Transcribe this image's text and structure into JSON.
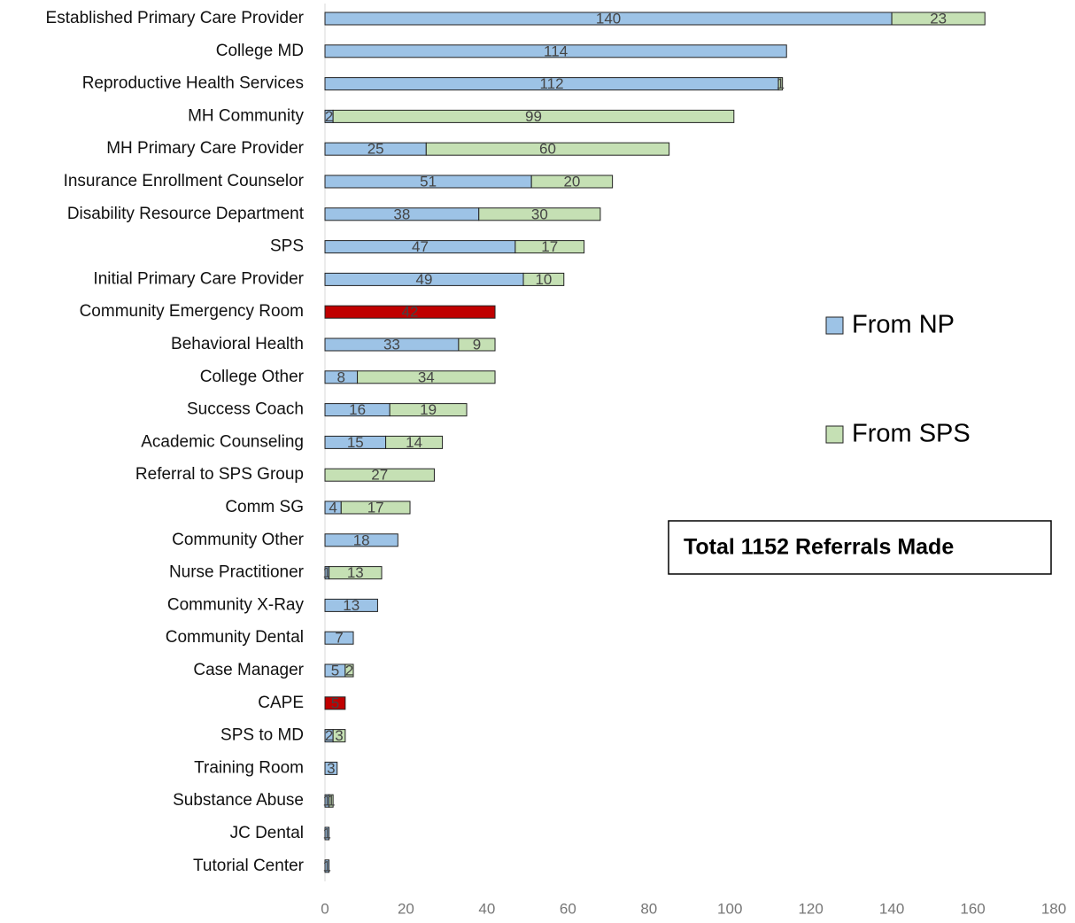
{
  "chart_data": {
    "type": "stacked_barh",
    "categories": [
      "Established Primary Care Provider",
      "College MD",
      "Reproductive Health Services",
      "MH Community",
      "MH Primary Care Provider",
      "Insurance Enrollment Counselor",
      "Disability Resource Department",
      "SPS",
      "Initial Primary Care Provider",
      "Community Emergency Room",
      "Behavioral Health",
      "College Other",
      "Success Coach",
      "Academic Counseling",
      "Referral to SPS Group",
      "Comm SG",
      "Community Other",
      "Nurse Practitioner",
      "Community X-Ray",
      "Community Dental",
      "Case Manager",
      "CAPE",
      "SPS to MD",
      "Training Room",
      "Substance Abuse",
      "JC Dental",
      "Tutorial Center"
    ],
    "series": [
      {
        "name": "From NP",
        "color": "#9dc3e6",
        "colors": [
          "#9dc3e6",
          "#9dc3e6",
          "#9dc3e6",
          "#9dc3e6",
          "#9dc3e6",
          "#9dc3e6",
          "#9dc3e6",
          "#9dc3e6",
          "#9dc3e6",
          "#c00000",
          "#9dc3e6",
          "#9dc3e6",
          "#9dc3e6",
          "#9dc3e6",
          "#9dc3e6",
          "#9dc3e6",
          "#9dc3e6",
          "#9dc3e6",
          "#9dc3e6",
          "#9dc3e6",
          "#9dc3e6",
          "#c00000",
          "#9dc3e6",
          "#9dc3e6",
          "#9dc3e6",
          "#9dc3e6",
          "#9dc3e6"
        ],
        "values": [
          140,
          114,
          112,
          2,
          25,
          51,
          38,
          47,
          49,
          42,
          33,
          8,
          16,
          15,
          null,
          4,
          18,
          1,
          13,
          7,
          5,
          5,
          2,
          3,
          1,
          1,
          1
        ]
      },
      {
        "name": "From SPS",
        "color": "#c5e0b4",
        "values": [
          23,
          null,
          1,
          99,
          60,
          20,
          30,
          17,
          10,
          null,
          9,
          34,
          19,
          14,
          27,
          17,
          null,
          13,
          null,
          null,
          2,
          null,
          3,
          null,
          1,
          null,
          null
        ]
      }
    ],
    "xlim": [
      0,
      180
    ],
    "xticks": [
      0,
      20,
      40,
      60,
      80,
      100,
      120,
      140,
      160,
      180
    ],
    "legend": "right",
    "annotation": "Total 1152 Referrals Made"
  }
}
